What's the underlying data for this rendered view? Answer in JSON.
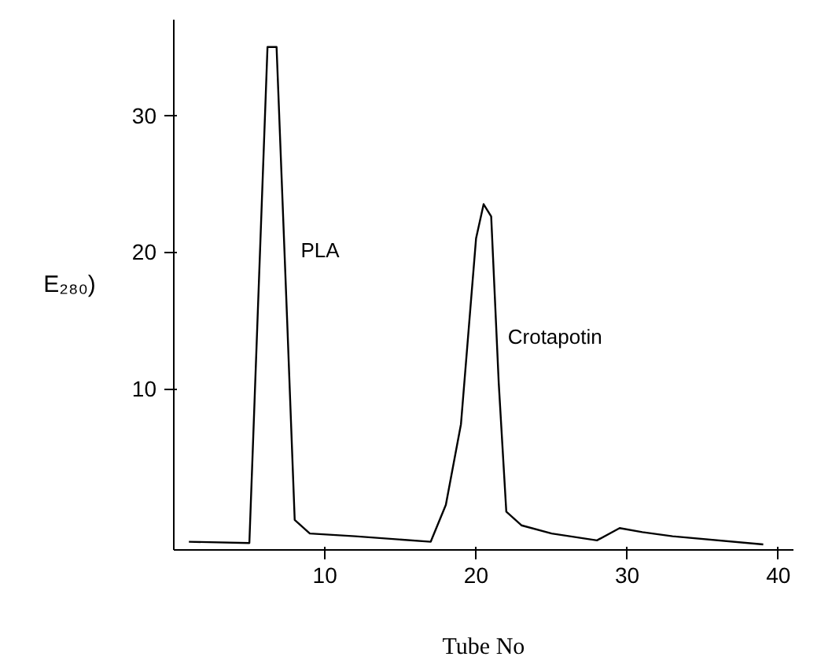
{
  "chart_data": {
    "type": "line",
    "xlabel": "Tube No",
    "ylabel": "E₂₈₀)",
    "x": [
      1,
      5,
      6.2,
      6.8,
      7.5,
      8,
      9,
      12,
      17,
      18,
      19,
      20,
      20.5,
      21,
      21.5,
      22,
      23,
      25,
      28,
      29.5,
      31,
      33,
      39
    ],
    "series": [
      {
        "color": "#000000",
        "values": [
          -1.2,
          -1.3,
          35,
          35,
          15,
          0.4,
          -0.6,
          -0.8,
          -1.2,
          1.5,
          7.4,
          21,
          23.5,
          22.6,
          10.4,
          1,
          0,
          -0.6,
          -1.1,
          -0.2,
          -0.5,
          -0.8,
          -1.4
        ]
      }
    ],
    "xlim": [
      0,
      41
    ],
    "xticks": [
      10,
      20,
      30,
      40
    ],
    "ylim": [
      -1.8,
      37
    ],
    "yticks": [
      10,
      20,
      30
    ],
    "annotations": [
      "PLA",
      "Crotapotin"
    ],
    "grid": false,
    "marker": "none",
    "line_style": "solid"
  }
}
